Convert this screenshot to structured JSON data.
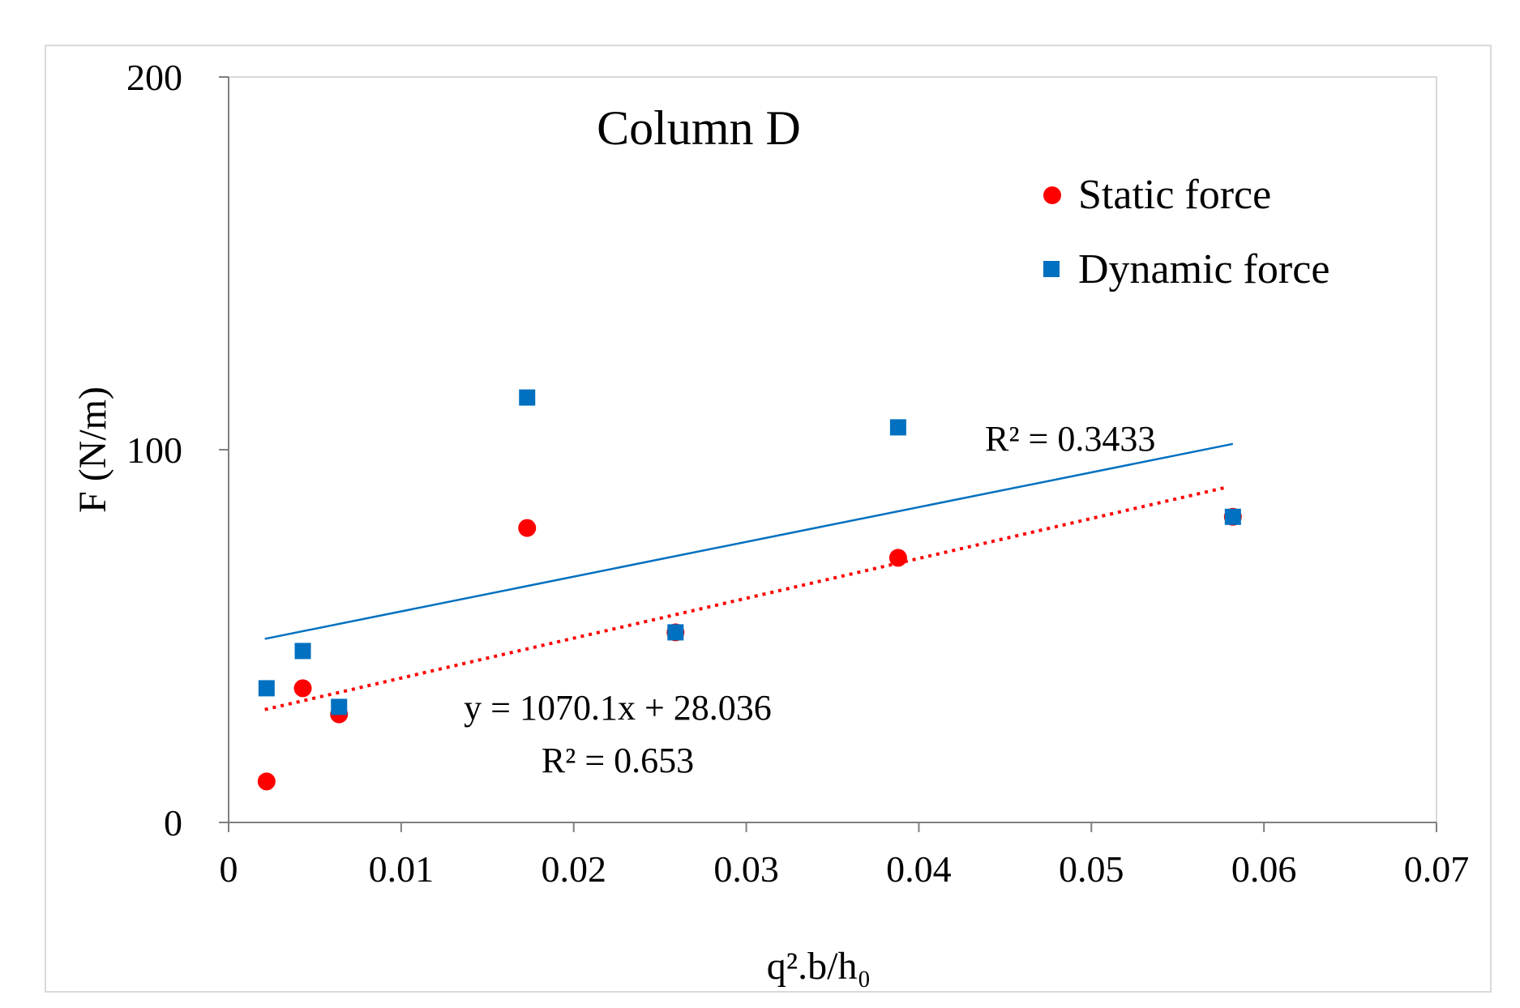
{
  "chart_data": {
    "type": "scatter",
    "title": "Column D",
    "xlabel": "q².b/h₀",
    "ylabel": "F (N/m)",
    "xlim": [
      0,
      0.07
    ],
    "ylim": [
      0,
      200
    ],
    "x_ticks": [
      0,
      0.01,
      0.02,
      0.03,
      0.04,
      0.05,
      0.06,
      0.07
    ],
    "x_tick_labels": [
      "0",
      "0.01",
      "0.02",
      "0.03",
      "0.04",
      "0.05",
      "0.06",
      "0.07"
    ],
    "y_ticks": [
      0,
      100,
      200
    ],
    "y_tick_labels": [
      "0",
      "100",
      "200"
    ],
    "grid": false,
    "legend_position": "top-right",
    "series": [
      {
        "name": "Static force",
        "marker": "circle",
        "color": "#ff0000",
        "x": [
          0.0022,
          0.0043,
          0.0064,
          0.0173,
          0.0259,
          0.0388,
          0.0582
        ],
        "y": [
          11,
          36,
          29,
          79,
          51,
          71,
          82
        ],
        "trendline": {
          "style": "dotted",
          "color": "#ff0000",
          "slope": 1070.1,
          "intercept": 28.036,
          "x_range": [
            0.0021,
            0.0577
          ],
          "equation": "y = 1070.1x + 28.036",
          "r2": "R² = 0.653"
        }
      },
      {
        "name": "Dynamic force",
        "marker": "square",
        "color": "#0070c0",
        "x": [
          0.0022,
          0.0043,
          0.0064,
          0.0173,
          0.0259,
          0.0388,
          0.0582
        ],
        "y": [
          36,
          46,
          31,
          114,
          51,
          106,
          82
        ],
        "trendline": {
          "style": "solid",
          "color": "#0070c0",
          "slope": 932.4,
          "intercept": 47.3,
          "x_range": [
            0.0021,
            0.0582
          ],
          "r2": "R² = 0.3433"
        }
      }
    ]
  }
}
